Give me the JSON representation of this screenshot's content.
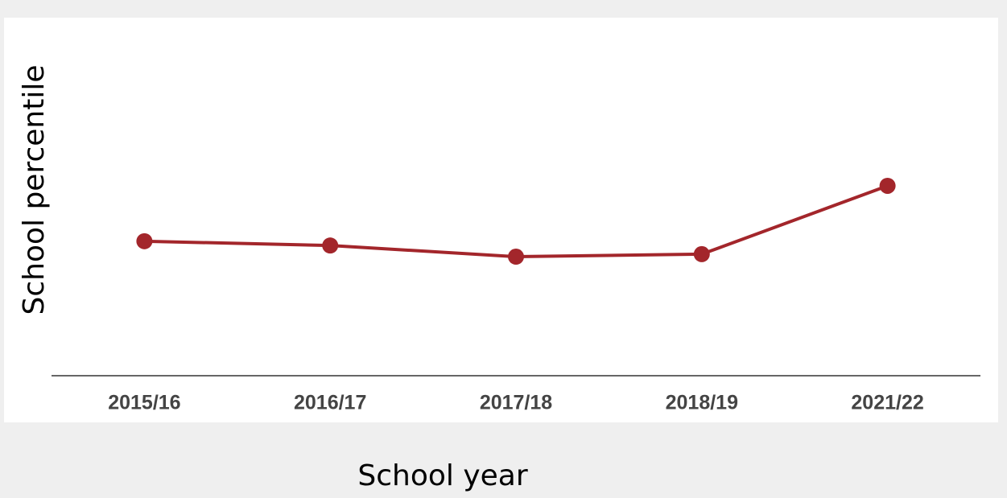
{
  "chart_data": {
    "type": "line",
    "x_label": "School year",
    "y_label": "School percentile",
    "categories": [
      "2015/16",
      "2016/17",
      "2017/18",
      "2018/19",
      "2021/22"
    ],
    "series": [
      {
        "color": "#a3262b",
        "values": [
          37.4,
          36.2,
          33.1,
          33.8,
          52.8
        ]
      }
    ],
    "ylim": [
      0,
      100
    ]
  }
}
